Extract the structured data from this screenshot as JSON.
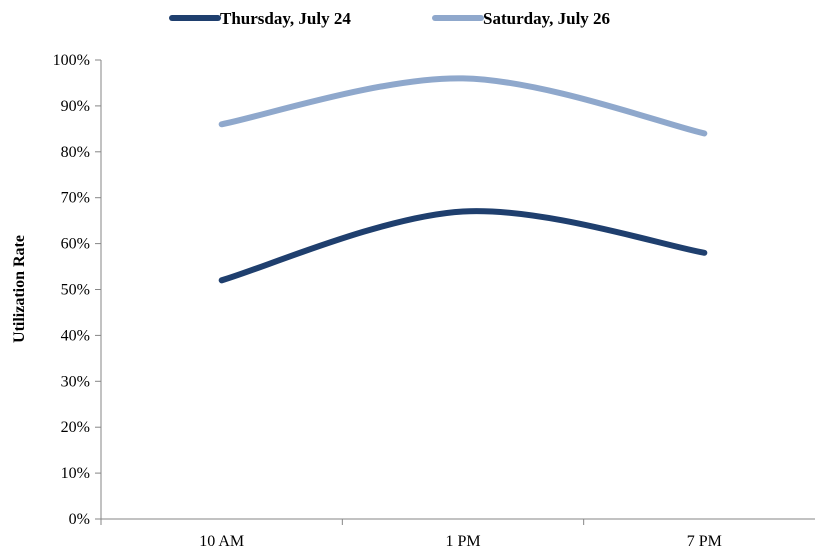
{
  "chart_data": {
    "type": "line",
    "title": "",
    "xlabel": "",
    "ylabel": "Utilization Rate",
    "categories": [
      "10 AM",
      "1 PM",
      "7 PM"
    ],
    "x_positions": [
      1,
      2,
      3
    ],
    "series": [
      {
        "name": "Thursday, July 24",
        "values": [
          0.52,
          0.67,
          0.58
        ],
        "color": "#1f3f6e"
      },
      {
        "name": "Saturday, July 26",
        "values": [
          0.86,
          0.96,
          0.84
        ],
        "color": "#8fa8cc"
      }
    ],
    "ylim": [
      0,
      1
    ],
    "y_ticks": [
      0,
      0.1,
      0.2,
      0.3,
      0.4,
      0.5,
      0.6,
      0.7,
      0.8,
      0.9,
      1.0
    ],
    "y_tick_labels": [
      "0%",
      "10%",
      "20%",
      "30%",
      "40%",
      "50%",
      "60%",
      "70%",
      "80%",
      "90%",
      "100%"
    ],
    "grid": false,
    "smooth": true,
    "legend_position": "top"
  }
}
